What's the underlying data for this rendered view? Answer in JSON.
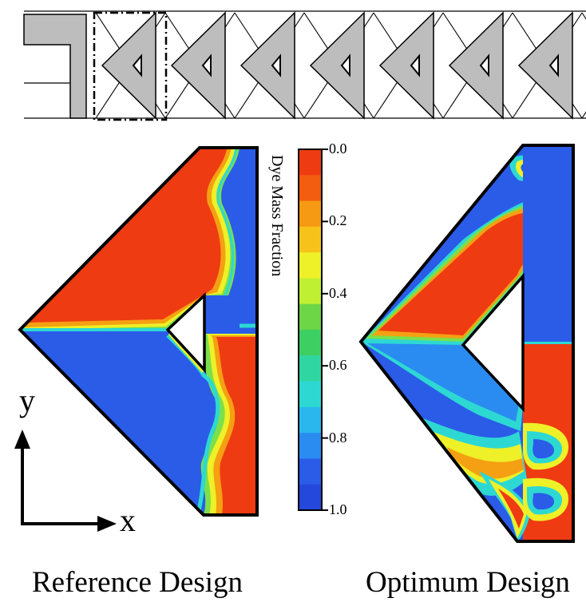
{
  "figure": {
    "colorbar": {
      "title": "Dye Mass Fraction",
      "ticks": [
        "0.0",
        "0.2",
        "0.4",
        "0.6",
        "0.8",
        "1.0"
      ],
      "colors": [
        "#ee3b12",
        "#f25d10",
        "#f59a12",
        "#f7c31a",
        "#eef028",
        "#bff032",
        "#6cd646",
        "#3ecf62",
        "#30d6a2",
        "#2dd8d3",
        "#29b7ee",
        "#2a8cf0",
        "#2a5ce8",
        "#2448dc"
      ]
    },
    "captions": {
      "left": "Reference Design",
      "right": "Optimum Design"
    },
    "axes": {
      "y_label": "y",
      "x_label": "x"
    }
  }
}
